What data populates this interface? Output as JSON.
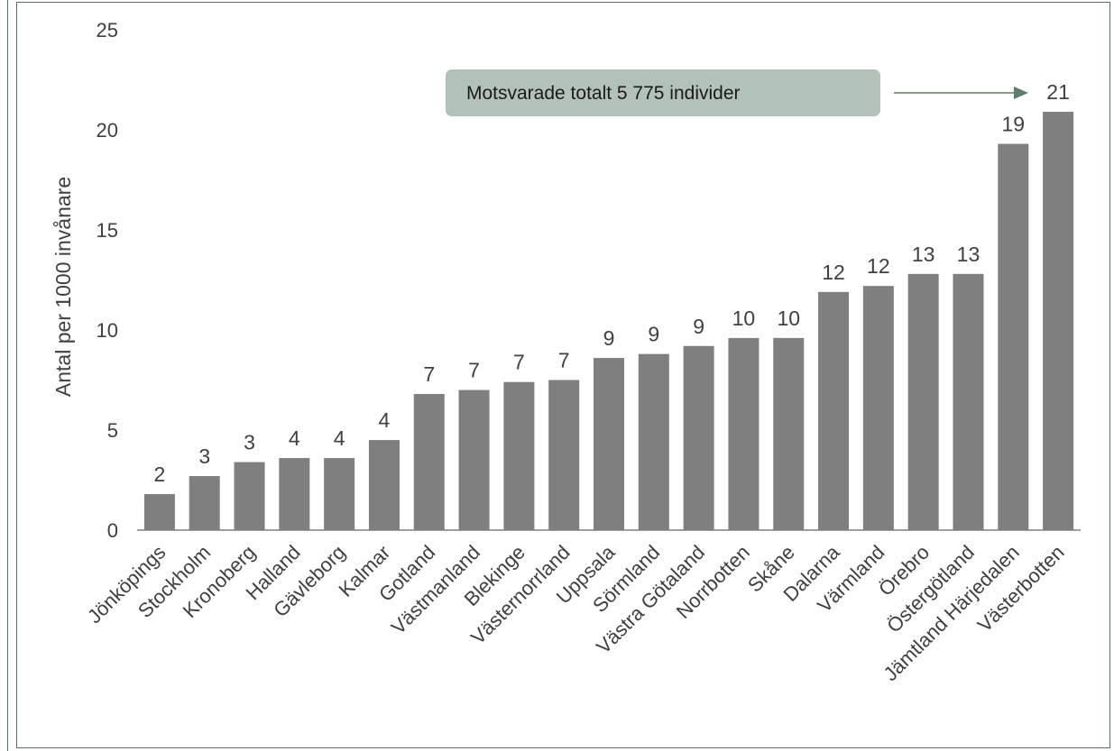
{
  "chart_data": {
    "type": "bar",
    "ylabel": "Antal per 1000 invånare",
    "ylim": [
      0,
      25
    ],
    "yticks": [
      0,
      5,
      10,
      15,
      20,
      25
    ],
    "categories": [
      "Jönköpings",
      "Stockholm",
      "Kronoberg",
      "Halland",
      "Gävleborg",
      "Kalmar",
      "Gotland",
      "Västmanland",
      "Blekinge",
      "Västernorrland",
      "Uppsala",
      "Sörmland",
      "Västra Götaland",
      "Norrbotten",
      "Skåne",
      "Dalarna",
      "Värmland",
      "Örebro",
      "Östergötland",
      "Jämtland Härjedalen",
      "Västerbotten"
    ],
    "values": [
      1.8,
      2.7,
      3.4,
      3.6,
      3.6,
      4.5,
      6.8,
      7.0,
      7.4,
      7.5,
      8.6,
      8.8,
      9.2,
      9.6,
      9.6,
      11.9,
      12.2,
      12.8,
      12.8,
      19.3,
      20.9
    ],
    "value_labels": [
      "2",
      "3",
      "3",
      "4",
      "4",
      "4",
      "7",
      "7",
      "7",
      "7",
      "9",
      "9",
      "9",
      "10",
      "10",
      "12",
      "12",
      "13",
      "13",
      "19",
      "21"
    ],
    "bar_color": "#7f7f7f",
    "grid": false,
    "annotation": {
      "text": "Motsvarade totalt 5 775 individer",
      "box_color": "#b3c2b8",
      "arrow_color": "#5e7d6b",
      "target": "Västerbotten"
    }
  }
}
